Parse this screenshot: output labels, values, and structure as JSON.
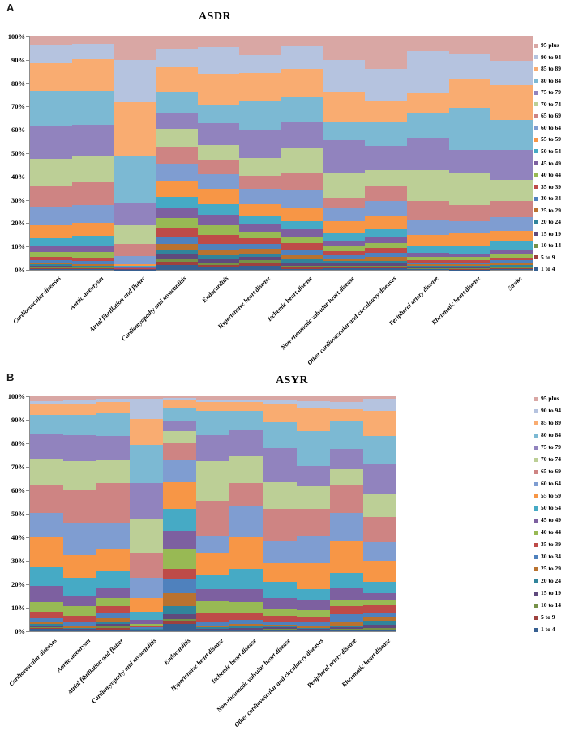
{
  "y_ticks": [
    "100%",
    "90%",
    "80%",
    "70%",
    "60%",
    "50%",
    "40%",
    "30%",
    "20%",
    "10%",
    "0%"
  ],
  "age_groups": [
    {
      "label": "1 to 4",
      "color": "#376091"
    },
    {
      "label": "5 to 9",
      "color": "#9E413E"
    },
    {
      "label": "10 to 14",
      "color": "#769148"
    },
    {
      "label": "15 to 19",
      "color": "#5F4A7D"
    },
    {
      "label": "20 to 24",
      "color": "#31849B"
    },
    {
      "label": "25 to 29",
      "color": "#B9722F"
    },
    {
      "label": "30 to 34",
      "color": "#4F81BD"
    },
    {
      "label": "35 to 39",
      "color": "#BE4B48"
    },
    {
      "label": "40 to 44",
      "color": "#98B954"
    },
    {
      "label": "45 to 49",
      "color": "#7D60A0"
    },
    {
      "label": "50 to 54",
      "color": "#46AAC5"
    },
    {
      "label": "55 to 59",
      "color": "#F79646"
    },
    {
      "label": "60 to 64",
      "color": "#7F9DD1"
    },
    {
      "label": "65 to 69",
      "color": "#CE8483"
    },
    {
      "label": "70 to 74",
      "color": "#BCCF96"
    },
    {
      "label": "75 to 79",
      "color": "#9183BE"
    },
    {
      "label": "80 to 84",
      "color": "#7CB9D3"
    },
    {
      "label": "85 to 89",
      "color": "#F9AC71"
    },
    {
      "label": "90 to 94",
      "color": "#B5C3DF"
    },
    {
      "label": "95 plus",
      "color": "#D9A7A4"
    }
  ],
  "chart_data": [
    {
      "type": "bar",
      "variant": "stacked-100",
      "panel_label": "A",
      "title": "ASDR",
      "ylim": [
        0,
        100
      ],
      "grid": false,
      "legend_position": "right",
      "categories": [
        "Cardiovascular diseases",
        "Aortic aneurysm",
        "Atrial fibrillation and flutter",
        "Cardiomyopathy and myocarditis",
        "Endocarditis",
        "Hypertensive heart disease",
        "Ischemic heart disease",
        "Non-rheumatic valvular heart disease",
        "Other cardiovascular and circulatory diseases",
        "Peripheral artery disease",
        "Rheumatic heart disease",
        "Stroke"
      ],
      "series": [
        {
          "name": "1 to 4",
          "values": [
            0.4,
            0.3,
            0.05,
            2.0,
            1.1,
            1.7,
            0.5,
            0.7,
            0.6,
            0.25,
            0.1,
            0.3
          ]
        },
        {
          "name": "5 to 9",
          "values": [
            0.4,
            0.3,
            0.05,
            1.5,
            1.0,
            1.2,
            0.5,
            0.6,
            0.6,
            0.2,
            0.2,
            0.3
          ]
        },
        {
          "name": "10 to 14",
          "values": [
            0.4,
            0.3,
            0.05,
            1.5,
            1.0,
            1.2,
            0.6,
            0.6,
            0.6,
            0.25,
            0.3,
            0.3
          ]
        },
        {
          "name": "15 to 19",
          "values": [
            0.5,
            0.4,
            0.05,
            1.6,
            1.8,
            1.4,
            1.2,
            0.8,
            1.0,
            0.4,
            0.5,
            0.5
          ]
        },
        {
          "name": "20 to 24",
          "values": [
            0.6,
            0.5,
            0.07,
            2.0,
            1.5,
            1.6,
            1.6,
            1.0,
            1.2,
            0.5,
            0.6,
            0.7
          ]
        },
        {
          "name": "25 to 29",
          "values": [
            0.8,
            0.8,
            0.08,
            2.5,
            1.8,
            1.8,
            2.0,
            1.2,
            1.5,
            0.7,
            0.7,
            0.9
          ]
        },
        {
          "name": "30 to 34",
          "values": [
            1.0,
            1.2,
            0.1,
            3.0,
            2.8,
            2.2,
            2.4,
            1.5,
            1.8,
            0.9,
            0.9,
            1.1
          ]
        },
        {
          "name": "35 to 39",
          "values": [
            1.4,
            1.6,
            0.15,
            4.0,
            4.1,
            2.5,
            2.6,
            1.6,
            2.0,
            1.1,
            1.0,
            1.3
          ]
        },
        {
          "name": "40 to 44",
          "values": [
            2.0,
            2.2,
            0.2,
            4.0,
            3.9,
            2.8,
            2.8,
            2.0,
            2.2,
            1.4,
            1.2,
            1.5
          ]
        },
        {
          "name": "45 to 49",
          "values": [
            2.6,
            3.0,
            0.3,
            4.3,
            4.8,
            3.0,
            3.2,
            2.2,
            2.4,
            1.6,
            1.4,
            1.8
          ]
        },
        {
          "name": "50 to 54",
          "values": [
            3.5,
            4.0,
            0.5,
            5.0,
            4.5,
            3.5,
            3.4,
            3.4,
            3.8,
            3.1,
            3.5,
            3.5
          ]
        },
        {
          "name": "55 to 59",
          "values": [
            5.5,
            5.5,
            0.8,
            7.0,
            6.3,
            5.2,
            5.6,
            5.2,
            5.2,
            4.5,
            5.6,
            4.5
          ]
        },
        {
          "name": "60 to 64",
          "values": [
            7.6,
            7.7,
            3.4,
            7.0,
            6.5,
            6.6,
            7.6,
            5.6,
            6.6,
            6.3,
            4.8,
            5.9
          ]
        },
        {
          "name": "65 to 69",
          "values": [
            9.5,
            10.0,
            5.2,
            7.0,
            6.3,
            5.6,
            7.7,
            4.6,
            6.3,
            8.3,
            6.9,
            6.9
          ]
        },
        {
          "name": "70 to 74",
          "values": [
            11.5,
            11.0,
            8.0,
            8.0,
            6.2,
            7.6,
            10.3,
            10.5,
            6.9,
            13.2,
            14.0,
            9.0
          ]
        },
        {
          "name": "75 to 79",
          "values": [
            14.0,
            13.5,
            10.0,
            7.0,
            9.4,
            12.1,
            11.5,
            14.2,
            10.4,
            13.9,
            9.7,
            12.9
          ]
        },
        {
          "name": "80 to 84",
          "values": [
            15.0,
            14.5,
            20.0,
            9.0,
            8.0,
            12.2,
            10.5,
            7.6,
            10.4,
            10.4,
            18.0,
            12.8
          ]
        },
        {
          "name": "85 to 89",
          "values": [
            12.0,
            13.5,
            23.0,
            10.6,
            13.0,
            12.2,
            12.0,
            13.2,
            8.7,
            8.7,
            12.2,
            15.0
          ]
        },
        {
          "name": "90 to 94",
          "values": [
            7.5,
            6.7,
            18.0,
            8.0,
            11.5,
            7.6,
            9.8,
            13.5,
            13.8,
            18.1,
            10.9,
            10.4
          ]
        },
        {
          "name": "95 plus",
          "values": [
            3.8,
            3.0,
            10.0,
            5.0,
            4.5,
            8.0,
            4.2,
            10.0,
            14.0,
            6.2,
            7.5,
            10.4
          ]
        }
      ]
    },
    {
      "type": "bar",
      "variant": "stacked-100",
      "panel_label": "B",
      "title": "ASYR",
      "ylim": [
        0,
        100
      ],
      "grid": false,
      "legend_position": "right",
      "categories": [
        "Cardiovascular diseases",
        "Aortic aneurysm",
        "Atrial fibrillation and flutter",
        "Cardiomyopathy and myocarditis",
        "Endocarditis",
        "Hypertensive heart disease",
        "Ischemic heart disease",
        "Non-rheumatic valvular heart disease",
        "Other cardiovascular and circulatory diseases",
        "Peripheral artery disease",
        "Rheumatic heart disease"
      ],
      "series": [
        {
          "name": "1 to 4",
          "values": [
            1.0,
            0.3,
            0.8,
            0.3,
            3.0,
            0.3,
            0.2,
            0.5,
            0.3,
            0.4,
            0.3
          ]
        },
        {
          "name": "5 to 9",
          "values": [
            0.4,
            0.2,
            0.6,
            0.1,
            1.5,
            0.2,
            0.3,
            0.3,
            0.2,
            0.3,
            0.4
          ]
        },
        {
          "name": "10 to 14",
          "values": [
            0.4,
            0.2,
            0.7,
            0.1,
            0.8,
            0.2,
            0.3,
            0.3,
            0.2,
            0.3,
            0.6
          ]
        },
        {
          "name": "15 to 19",
          "values": [
            0.5,
            0.3,
            0.9,
            0.2,
            2.0,
            0.4,
            0.5,
            0.5,
            0.3,
            0.6,
            1.4
          ]
        },
        {
          "name": "20 to 24",
          "values": [
            0.7,
            0.5,
            1.1,
            0.2,
            3.5,
            0.5,
            0.8,
            0.6,
            0.5,
            0.8,
            1.8
          ]
        },
        {
          "name": "25 to 29",
          "values": [
            0.8,
            0.6,
            1.3,
            0.3,
            5.4,
            0.8,
            1.0,
            0.7,
            0.6,
            1.7,
            1.6
          ]
        },
        {
          "name": "30 to 34",
          "values": [
            1.7,
            1.7,
            2.1,
            0.4,
            5.9,
            1.7,
            1.7,
            1.2,
            1.7,
            3.1,
            1.7
          ]
        },
        {
          "name": "35 to 39",
          "values": [
            2.8,
            2.8,
            3.1,
            0.5,
            4.5,
            3.5,
            2.8,
            2.5,
            2.6,
            3.5,
            3.1
          ]
        },
        {
          "name": "40 to 44",
          "values": [
            4.1,
            4.1,
            3.4,
            1.0,
            8.2,
            5.2,
            4.8,
            2.7,
            2.6,
            2.7,
            2.7
          ]
        },
        {
          "name": "45 to 49",
          "values": [
            6.9,
            4.5,
            4.5,
            1.7,
            8.0,
            5.1,
            5.5,
            4.8,
            4.4,
            5.2,
            2.5
          ]
        },
        {
          "name": "50 to 54",
          "values": [
            7.9,
            7.6,
            6.9,
            3.5,
            9.3,
            5.9,
            8.7,
            6.9,
            4.5,
            6.2,
            5.1
          ]
        },
        {
          "name": "55 to 59",
          "values": [
            12.8,
            9.6,
            9.3,
            5.8,
            11.3,
            9.3,
            13.4,
            8.0,
            11.1,
            13.5,
            9.0
          ]
        },
        {
          "name": "60 to 64",
          "values": [
            10.3,
            13.8,
            11.4,
            8.7,
            9.4,
            7.2,
            13.1,
            9.6,
            11.6,
            12.0,
            7.6
          ]
        },
        {
          "name": "65 to 69",
          "values": [
            11.7,
            13.8,
            17.2,
            10.6,
            7.2,
            15.2,
            9.9,
            13.5,
            11.5,
            11.7,
            11.0
          ]
        },
        {
          "name": "70 to 74",
          "values": [
            11.0,
            12.5,
            9.4,
            14.5,
            5.2,
            17.0,
            11.5,
            11.3,
            9.6,
            7.0,
            9.7
          ]
        },
        {
          "name": "75 to 79",
          "values": [
            11.0,
            11.0,
            10.3,
            15.3,
            4.1,
            11.0,
            11.0,
            14.7,
            8.6,
            8.5,
            12.7
          ]
        },
        {
          "name": "80 to 84",
          "values": [
            8.0,
            8.5,
            9.7,
            16.2,
            5.9,
            10.5,
            8.5,
            11.0,
            14.9,
            12.0,
            12.1
          ]
        },
        {
          "name": "85 to 89",
          "values": [
            5.0,
            5.0,
            5.1,
            11.0,
            3.5,
            3.5,
            3.8,
            7.9,
            10.0,
            5.0,
            10.7
          ]
        },
        {
          "name": "90 to 94",
          "values": [
            1.0,
            1.5,
            1.2,
            8.6,
            0.7,
            1.2,
            1.0,
            1.5,
            2.7,
            3.3,
            5.0
          ]
        },
        {
          "name": "95 plus",
          "values": [
            2.0,
            1.5,
            1.0,
            1.0,
            0.6,
            1.3,
            1.2,
            1.5,
            2.1,
            2.2,
            1.0
          ]
        }
      ]
    }
  ]
}
